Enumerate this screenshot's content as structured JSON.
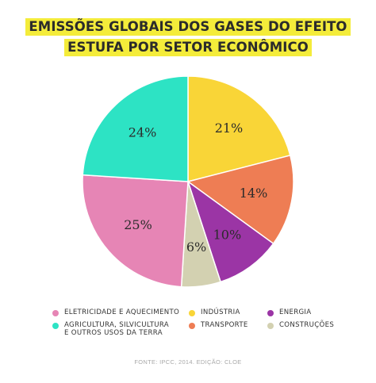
{
  "title": {
    "line1": "EMISSÕES GLOBAIS DOS GASES DO EFEITO",
    "line2": "ESTUFA POR SETOR ECONÔMICO"
  },
  "chart_data": {
    "type": "pie",
    "slices": [
      {
        "label": "INDÚSTRIA",
        "value": 21,
        "display": "21%",
        "color": "#f9d537"
      },
      {
        "label": "TRANSPORTE",
        "value": 14,
        "display": "14%",
        "color": "#ee7d54"
      },
      {
        "label": "ENERGIA",
        "value": 10,
        "display": "10%",
        "color": "#9b35a5"
      },
      {
        "label": "CONSTRUÇÕES",
        "value": 6,
        "display": "6%",
        "color": "#d3d1b1"
      },
      {
        "label": "ELETRICIDADE E AQUECIMENTO",
        "value": 25,
        "display": "25%",
        "color": "#e685b5"
      },
      {
        "label": "AGRICULTURA, SILVICULTURA E OUTROS USOS DA TERRA",
        "value": 24,
        "display": "24%",
        "color": "#2de3c4"
      }
    ],
    "legend": [
      {
        "lines": [
          "ELETRICIDADE E AQUECIMENTO"
        ],
        "color": "#e685b5"
      },
      {
        "lines": [
          "INDÚSTRIA"
        ],
        "color": "#f9d537"
      },
      {
        "lines": [
          "ENERGIA"
        ],
        "color": "#9b35a5"
      },
      {
        "lines": [
          "AGRICULTURA, SILVICULTURA",
          "E OUTROS USOS DA TERRA"
        ],
        "color": "#2de3c4"
      },
      {
        "lines": [
          "TRANSPORTE"
        ],
        "color": "#ee7d54"
      },
      {
        "lines": [
          "CONSTRUÇÕES"
        ],
        "color": "#d3d1b1"
      }
    ],
    "legend_position": "bottom",
    "source": "FONTE: IPCC, 2014. EDIÇÃO: CLOE"
  }
}
